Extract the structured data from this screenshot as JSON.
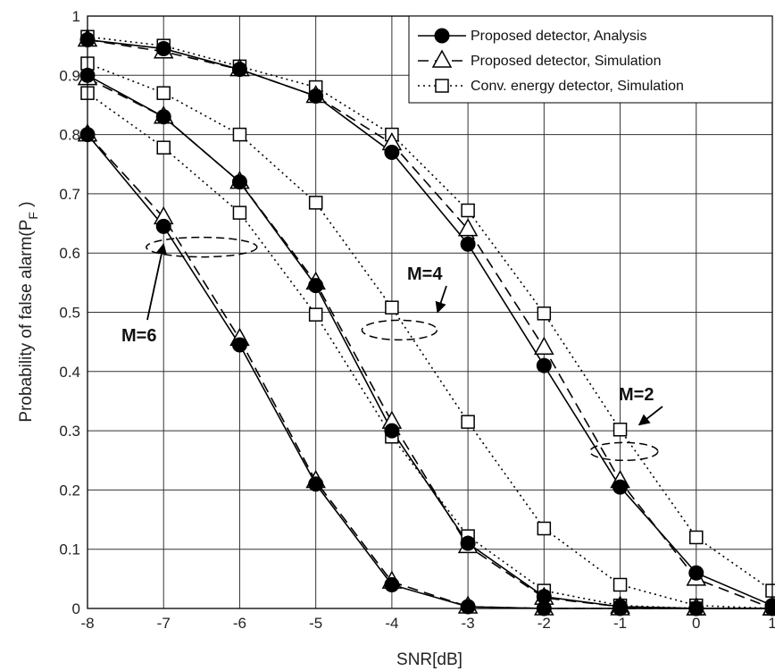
{
  "chart_data": {
    "type": "line",
    "xlabel": "SNR[dB]",
    "ylabel": "Probability of false alarm(P",
    "ylabel_sub": "F",
    "ylabel_close": " )",
    "xlim": [
      -8,
      1
    ],
    "ylim": [
      0,
      1
    ],
    "x_ticks": [
      "-8",
      "-7",
      "-6",
      "-5",
      "-4",
      "-3",
      "-2",
      "-1",
      "0",
      "1"
    ],
    "y_ticks": [
      "0",
      "0.1",
      "0.2",
      "0.3",
      "0.4",
      "0.5",
      "0.6",
      "0.7",
      "0.8",
      "0.9",
      "1"
    ],
    "grid": true,
    "legend_position": "top-right",
    "x": [
      -8,
      -7,
      -6,
      -5,
      -4,
      -3,
      -2,
      -1,
      0,
      1
    ],
    "series": [
      {
        "name": "Proposed detector, Analysis",
        "group": "M=2",
        "style": "solid",
        "marker": "filled-circle",
        "values": [
          0.96,
          0.945,
          0.91,
          0.865,
          0.77,
          0.615,
          0.41,
          0.205,
          0.06,
          0.005
        ]
      },
      {
        "name": "Proposed detector, Simulation",
        "group": "M=2",
        "style": "dashed",
        "marker": "open-triangle",
        "values": [
          0.96,
          0.94,
          0.91,
          0.865,
          0.785,
          0.64,
          0.44,
          0.215,
          0.05,
          0.0
        ]
      },
      {
        "name": "Conv. energy detector, Simulation",
        "group": "M=2",
        "style": "dotted",
        "marker": "open-square",
        "values": [
          0.965,
          0.95,
          0.915,
          0.88,
          0.8,
          0.672,
          0.498,
          0.302,
          0.12,
          0.03
        ]
      },
      {
        "group": "M=4",
        "style": "solid",
        "marker": "filled-circle",
        "values": [
          0.9,
          0.83,
          0.72,
          0.545,
          0.3,
          0.11,
          0.02,
          0.003,
          0.0,
          0.0
        ]
      },
      {
        "group": "M=4",
        "style": "dashed",
        "marker": "open-triangle",
        "values": [
          0.895,
          0.83,
          0.72,
          0.55,
          0.315,
          0.105,
          0.018,
          0.003,
          0.0,
          0.0
        ]
      },
      {
        "group": "M=4",
        "style": "dotted",
        "marker": "open-square",
        "values": [
          0.92,
          0.87,
          0.8,
          0.685,
          0.508,
          0.315,
          0.135,
          0.04,
          0.005,
          0.0
        ]
      },
      {
        "group": "M=6",
        "style": "solid",
        "marker": "filled-circle",
        "values": [
          0.8,
          0.645,
          0.445,
          0.21,
          0.04,
          0.003,
          0.0,
          0.0,
          0.0,
          0.0
        ]
      },
      {
        "group": "M=6",
        "style": "dashed",
        "marker": "open-triangle",
        "values": [
          0.8,
          0.66,
          0.455,
          0.215,
          0.045,
          0.003,
          0.0,
          0.0,
          0.0,
          0.0
        ]
      },
      {
        "group": "M=6",
        "style": "dotted",
        "marker": "open-square",
        "values": [
          0.87,
          0.778,
          0.668,
          0.496,
          0.29,
          0.122,
          0.03,
          0.005,
          0.0,
          0.0
        ]
      }
    ],
    "annotations": [
      {
        "text": "M=2",
        "ellipse_center": [
          -0.95,
          0.265
        ],
        "arrow_tip": [
          -0.75,
          0.31
        ]
      },
      {
        "text": "M=4",
        "ellipse_center": [
          -3.9,
          0.47
        ],
        "arrow_tip": [
          -3.4,
          0.5
        ]
      },
      {
        "text": "M=6",
        "ellipse_center": [
          -6.5,
          0.61
        ],
        "arrow_tip": [
          -7.0,
          0.615
        ]
      }
    ]
  }
}
